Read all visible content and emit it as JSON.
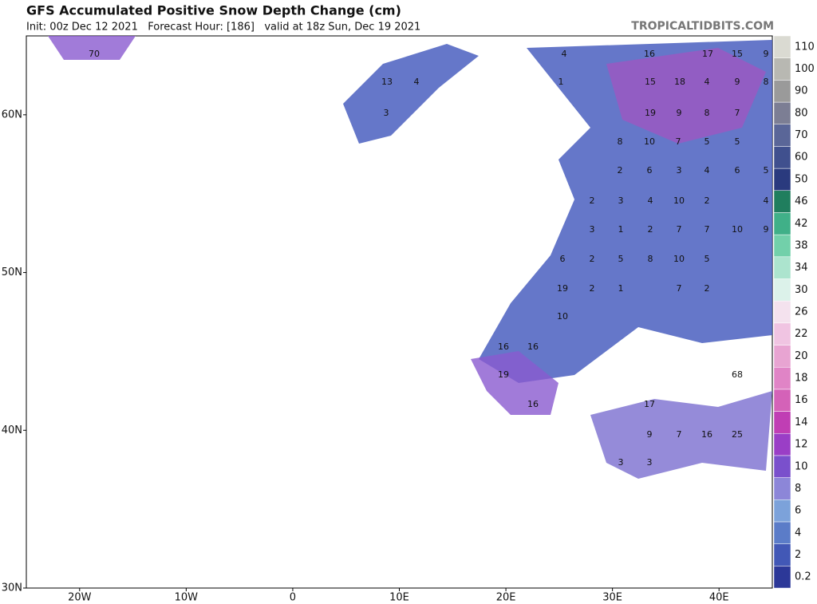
{
  "header": {
    "title": "GFS Accumulated Positive Snow Depth Change (cm)",
    "subtitle": "Init: 00z Dec 12 2021   Forecast Hour: [186]   valid at 18z Sun, Dec 19 2021",
    "credit": "TROPICALTIDBITS.COM"
  },
  "map": {
    "lonlim": [
      -25,
      45
    ],
    "latlim": [
      30,
      65
    ],
    "lonticks": [
      {
        "value": -20,
        "label": "20W"
      },
      {
        "value": -10,
        "label": "10W"
      },
      0,
      {
        "value": 10,
        "label": "10E"
      },
      {
        "value": 20,
        "label": "20E"
      },
      {
        "value": 30,
        "label": "30E"
      },
      {
        "value": 40,
        "label": "40E"
      }
    ],
    "latticks": [
      {
        "value": 30,
        "label": "30N"
      },
      {
        "value": 40,
        "label": "40N"
      },
      {
        "value": 50,
        "label": "50N"
      },
      {
        "value": 60,
        "label": "60N"
      }
    ],
    "labels": [
      70,
      13,
      4,
      3,
      4,
      1,
      16,
      17,
      15,
      9,
      15,
      18,
      4,
      9,
      8,
      19,
      9,
      8,
      7,
      8,
      10,
      7,
      5,
      5,
      2,
      6,
      3,
      4,
      6,
      5,
      2,
      3,
      4,
      10,
      2,
      4,
      3,
      1,
      2,
      7,
      7,
      10,
      9,
      6,
      2,
      5,
      8,
      10,
      5,
      19,
      2,
      1,
      7,
      2,
      10,
      16,
      16,
      19,
      16,
      17,
      9,
      7,
      16,
      25,
      68,
      3,
      3
    ]
  },
  "colorbar": {
    "levels": [
      0.2,
      2,
      4,
      6,
      8,
      10,
      12,
      14,
      16,
      18,
      20,
      22,
      26,
      30,
      34,
      38,
      42,
      46,
      50,
      60,
      70,
      80,
      90,
      100,
      110
    ],
    "colors": [
      "#2c3898",
      "#4258b6",
      "#5b7cc8",
      "#7ca2da",
      "#8c86d8",
      "#7a50cc",
      "#9a3ec6",
      "#c03eb4",
      "#d462b8",
      "#e084c6",
      "#e8a4d2",
      "#f0c4e2",
      "#f4e2ee",
      "#dcf2ea",
      "#acE4ce",
      "#72d0aa",
      "#40b088",
      "#207e5e",
      "#2a3a7e",
      "#40508e",
      "#5a6698",
      "#7c7e94",
      "#9a9a9a",
      "#b8b8b2",
      "#dadad2"
    ]
  }
}
